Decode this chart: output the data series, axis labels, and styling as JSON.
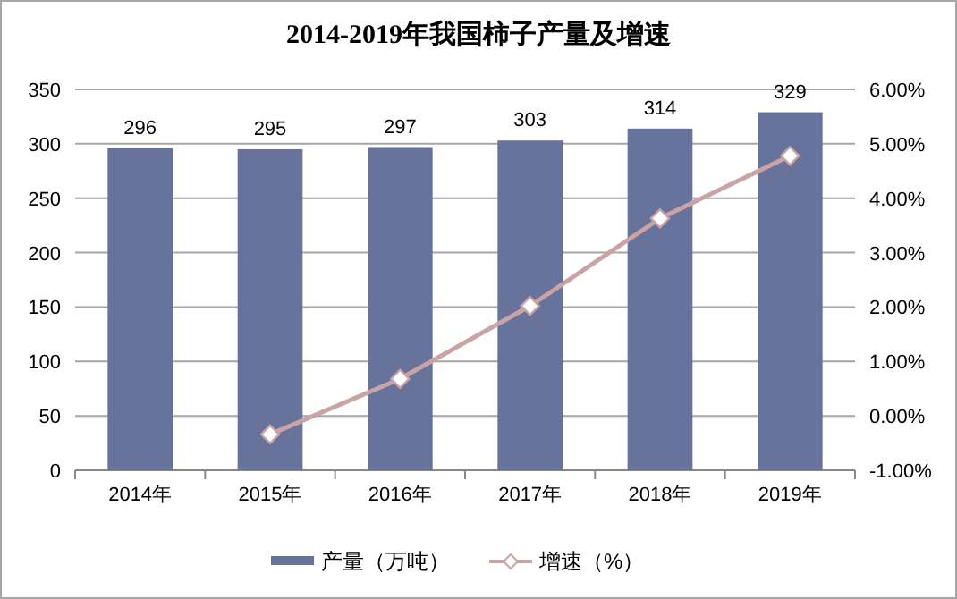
{
  "chart_data": {
    "type": "bar",
    "title": "2014-2019年我国柿子产量及增速",
    "categories": [
      "2014年",
      "2015年",
      "2016年",
      "2017年",
      "2018年",
      "2019年"
    ],
    "series": [
      {
        "name": "产量（万吨）",
        "color": "#67739b",
        "values": [
          296,
          295,
          297,
          303,
          314,
          329
        ],
        "data_labels": true
      },
      {
        "name": "增速（%）",
        "type": "line",
        "axis": "y2",
        "color": "#c9a3a6",
        "marker": "diamond",
        "values": [
          null,
          -0.34,
          0.68,
          2.02,
          3.63,
          4.78
        ]
      }
    ],
    "ylim": [
      0,
      350
    ],
    "yticks": [
      0,
      50,
      100,
      150,
      200,
      250,
      300,
      350
    ],
    "y2lim": [
      -1,
      6
    ],
    "y2ticks": [
      {
        "value": -1,
        "label": "-1.00%"
      },
      {
        "value": 0,
        "label": "0.00%"
      },
      {
        "value": 1,
        "label": "1.00%"
      },
      {
        "value": 2,
        "label": "2.00%"
      },
      {
        "value": 3,
        "label": "3.00%"
      },
      {
        "value": 4,
        "label": "4.00%"
      },
      {
        "value": 5,
        "label": "5.00%"
      },
      {
        "value": 6,
        "label": "6.00%"
      }
    ],
    "grid": "y",
    "legend": "bottom"
  }
}
